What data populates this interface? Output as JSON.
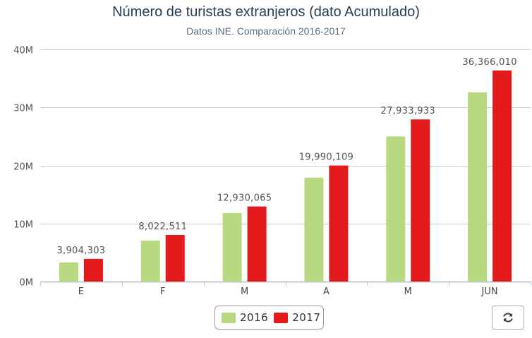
{
  "chart_data": {
    "type": "bar",
    "title": "Número de turistas extranjeros (dato Acumulado)",
    "subtitle": "Datos INE. Comparación 2016-2017",
    "categories": [
      "E",
      "F",
      "M",
      "A",
      "M",
      "JUN"
    ],
    "series": [
      {
        "name": "2016",
        "color": "#b8d97f",
        "values": [
          3300000,
          7050000,
          11800000,
          17900000,
          25000000,
          32600000
        ]
      },
      {
        "name": "2017",
        "color": "#e31a1c",
        "values": [
          3904303,
          8022511,
          12930065,
          19990109,
          27933933,
          36366010
        ]
      }
    ],
    "data_labels": [
      "3,904,303",
      "8,022,511",
      "12,930,065",
      "19,990,109",
      "27,933,933",
      "36,366,010"
    ],
    "yticks": [
      {
        "value": 0,
        "label": "0M"
      },
      {
        "value": 10000000,
        "label": "10M"
      },
      {
        "value": 20000000,
        "label": "20M"
      },
      {
        "value": 30000000,
        "label": "30M"
      },
      {
        "value": 40000000,
        "label": "40M"
      }
    ],
    "ylim": [
      0,
      40000000
    ],
    "xlabel": "",
    "ylabel": "",
    "grid": true,
    "legend_position": "bottom-center"
  },
  "legend": {
    "items": [
      {
        "label": "2016",
        "color": "#b8d97f"
      },
      {
        "label": "2017",
        "color": "#e31a1c"
      }
    ]
  },
  "controls": {
    "refresh_icon": "refresh-icon"
  }
}
